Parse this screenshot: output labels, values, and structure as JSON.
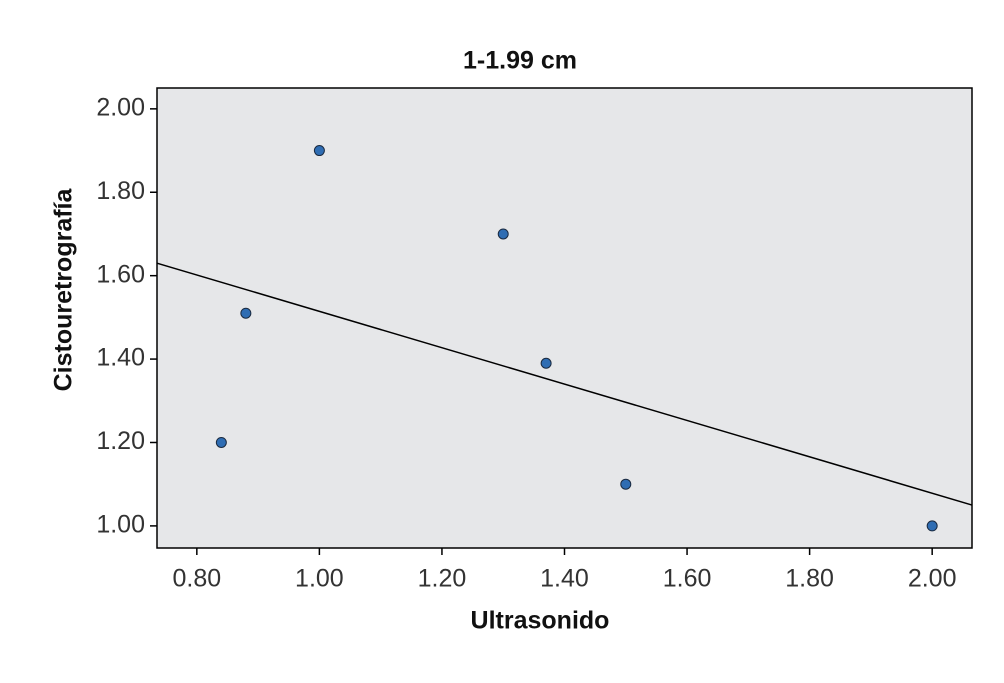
{
  "chart_data": {
    "type": "scatter",
    "title": "1-1.99 cm",
    "x_label": "Ultrasonido",
    "y_label": "Cistouretrografía",
    "x": [
      0.84,
      0.88,
      1.0,
      1.3,
      1.37,
      1.5,
      2.0
    ],
    "values": [
      1.2,
      1.51,
      1.9,
      1.7,
      1.39,
      1.1,
      1.0
    ],
    "color": "#2f6db3",
    "fit_line": {
      "x": [
        0.735,
        2.065
      ],
      "y": [
        1.63,
        1.05
      ],
      "color": "#000000"
    },
    "xlim": [
      0.735,
      2.065
    ],
    "xticks": [
      {
        "value": 0.8,
        "label": "0.80"
      },
      {
        "value": 1.0,
        "label": "1.00"
      },
      {
        "value": 1.2,
        "label": "1.20"
      },
      {
        "value": 1.4,
        "label": "1.40"
      },
      {
        "value": 1.6,
        "label": "1.60"
      },
      {
        "value": 1.8,
        "label": "1.80"
      },
      {
        "value": 2.0,
        "label": "2.00"
      }
    ],
    "ylim": [
      0.947,
      2.05
    ],
    "yticks": [
      {
        "value": 1.0,
        "label": "1.00"
      },
      {
        "value": 1.2,
        "label": "1.20"
      },
      {
        "value": 1.4,
        "label": "1.40"
      },
      {
        "value": 1.6,
        "label": "1.60"
      },
      {
        "value": 1.8,
        "label": "1.80"
      },
      {
        "value": 2.0,
        "label": "2.00"
      }
    ],
    "background": "#e6e7e9"
  }
}
